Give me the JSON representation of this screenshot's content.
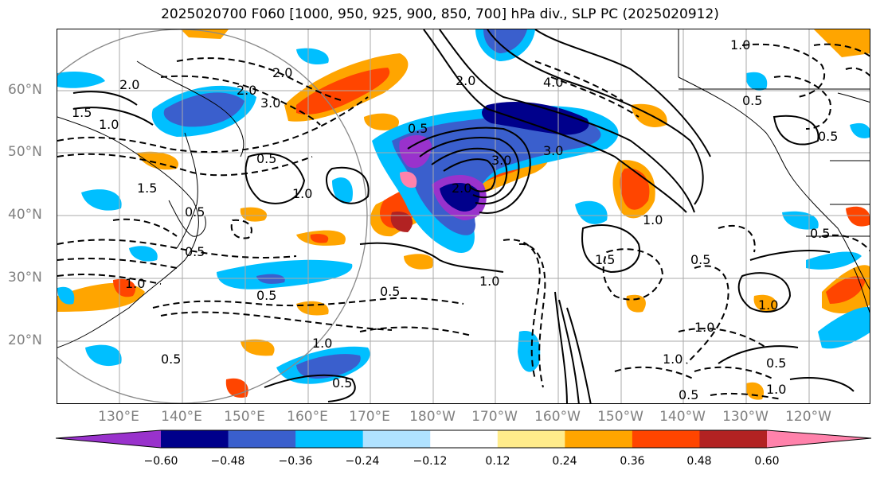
{
  "title": "2025020700 F060 [1000, 950, 925, 900, 850, 700] hPa div., SLP PC (2025020912)",
  "lat_labels": [
    "60°N",
    "50°N",
    "40°N",
    "30°N",
    "20°N"
  ],
  "lon_labels": [
    "130°E",
    "140°E",
    "150°E",
    "160°E",
    "170°E",
    "180°W",
    "170°W",
    "160°W",
    "150°W",
    "140°W",
    "130°W",
    "120°W"
  ],
  "colorbar": {
    "colors": [
      "#9932cc",
      "#00008b",
      "#3a5fcd",
      "#00bfff",
      "#b0e2ff",
      "#ffffff",
      "#ffec8b",
      "#ffa500",
      "#ff4500",
      "#b22222",
      "#ff82ab"
    ],
    "tick_labels": [
      "−0.60",
      "−0.48",
      "−0.36",
      "−0.24",
      "−0.12",
      "0.12",
      "0.24",
      "0.36",
      "0.48",
      "0.60"
    ]
  },
  "contour_labels": [
    "1.5",
    "1.0",
    "2.0",
    "3.0",
    "0.5",
    "1.0",
    "1.5",
    "2.0",
    "0.5",
    "0.5",
    "1.0",
    "2.0",
    "4.0",
    "0.5",
    "3.0",
    "2.0",
    "3.0",
    "0.5",
    "0.5",
    "2.0",
    "0.5",
    "1.0",
    "0.5",
    "1.5",
    "1.0",
    "1.0",
    "1.0",
    "0.5",
    "1.0",
    "1.0",
    "0.5",
    "1.0",
    "0.5",
    "0.5",
    "0.5",
    "1.0",
    "0.5"
  ]
}
